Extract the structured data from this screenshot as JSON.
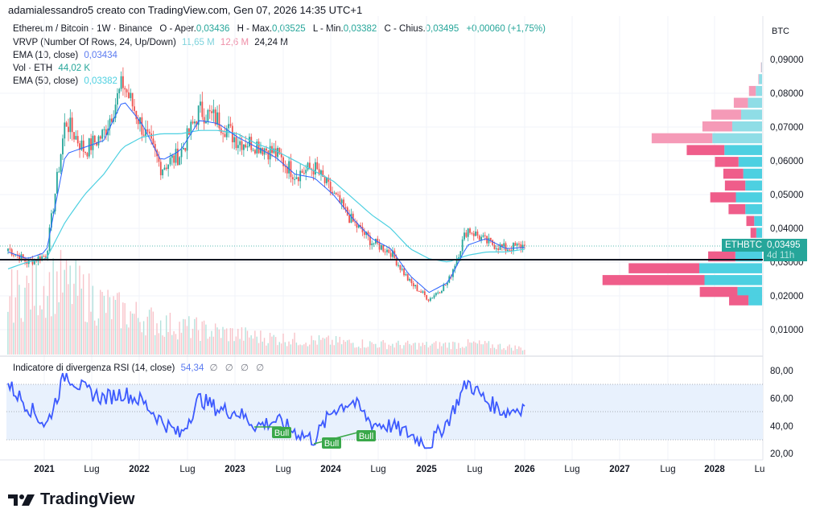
{
  "header": {
    "credit": "adamialessandro5 creato con TradingView.com, Gen 07, 2026 14:35 UTC+1"
  },
  "legend": {
    "symbol": "Ethereum / Bitcoin · 1W · Binance",
    "open_label": "O - Aper.",
    "open": "0,03436",
    "high_label": "H - Max.",
    "high": "0,03525",
    "low_label": "L - Min.",
    "low": "0,03382",
    "close_label": "C - Chius.",
    "close": "0,03495",
    "change": "+0,00060 (+1,75%)",
    "vrvp_label": "VRVP (Number Of Rows, 24, Up/Down)",
    "vrvp_up": "11,65 M",
    "vrvp_down": "12,6 M",
    "vrvp_total": "24,24 M",
    "ema10_label": "EMA (10, close)",
    "ema10": "0,03434",
    "vol_label": "Vol · ETH",
    "vol": "44,02 K",
    "ema50_label": "EMA (50, close)",
    "ema50": "0,03382"
  },
  "price_axis": {
    "unit": "BTC",
    "ticks": [
      "0,09000",
      "0,08000",
      "0,07000",
      "0,06000",
      "0,05000",
      "0,04000",
      "0,03000",
      "0,02000",
      "0,01000"
    ]
  },
  "price_tag": {
    "symbol": "ETHBTC",
    "price": "0,03495",
    "countdown": "4d 11h"
  },
  "rsi": {
    "label": "Indicatore di divergenza RSI (14, close)",
    "value": "54,34",
    "extra": "∅ ∅ ∅ ∅",
    "ticks": [
      "80,00",
      "60,00",
      "40,00",
      "20,00"
    ],
    "bull_labels": [
      "Bull",
      "Bull",
      "Bull"
    ]
  },
  "time_axis": {
    "labels": [
      {
        "text": "2021",
        "bold": true
      },
      {
        "text": "Lug",
        "bold": false
      },
      {
        "text": "2022",
        "bold": true
      },
      {
        "text": "Lug",
        "bold": false
      },
      {
        "text": "2023",
        "bold": true
      },
      {
        "text": "Lug",
        "bold": false
      },
      {
        "text": "2024",
        "bold": true
      },
      {
        "text": "Lug",
        "bold": false
      },
      {
        "text": "2025",
        "bold": true
      },
      {
        "text": "Lug",
        "bold": false
      },
      {
        "text": "2026",
        "bold": true
      },
      {
        "text": "Lug",
        "bold": false
      },
      {
        "text": "2027",
        "bold": true
      },
      {
        "text": "Lug",
        "bold": false
      },
      {
        "text": "2028",
        "bold": true
      },
      {
        "text": "Lu",
        "bold": false
      }
    ]
  },
  "branding": {
    "name": "TradingView"
  },
  "colors": {
    "up": "#26a69a",
    "down": "#ef5350",
    "ema10": "#2962ff",
    "ema50": "#4dd0e1",
    "vrvp_up": "#4dd0e1",
    "vrvp_down": "#ef5d8a",
    "rsi": "#3d5afe",
    "bull": "#3aa84a"
  },
  "chart_data": [
    {
      "type": "line",
      "title": "Ethereum / Bitcoin · 1W · Binance (approx. weekly close)",
      "xlabel": "",
      "ylabel": "BTC",
      "ylim": [
        0.0,
        0.095
      ],
      "x": [
        "2020-10",
        "2021-01",
        "2021-03",
        "2021-05",
        "2021-07",
        "2021-09",
        "2021-12",
        "2022-02",
        "2022-05",
        "2022-07",
        "2022-09",
        "2022-12",
        "2023-03",
        "2023-06",
        "2023-09",
        "2023-12",
        "2024-03",
        "2024-05",
        "2024-08",
        "2024-11",
        "2025-01",
        "2025-03",
        "2025-04",
        "2025-06",
        "2025-08",
        "2025-10",
        "2025-12",
        "2026-01"
      ],
      "series": [
        {
          "name": "Close",
          "values": [
            0.034,
            0.03,
            0.032,
            0.072,
            0.063,
            0.068,
            0.083,
            0.07,
            0.058,
            0.062,
            0.075,
            0.072,
            0.066,
            0.065,
            0.062,
            0.056,
            0.058,
            0.05,
            0.042,
            0.036,
            0.033,
            0.024,
            0.019,
            0.024,
            0.04,
            0.036,
            0.034,
            0.03495
          ]
        },
        {
          "name": "EMA (10, close)",
          "values": [
            0.033,
            0.031,
            0.033,
            0.062,
            0.064,
            0.066,
            0.078,
            0.071,
            0.06,
            0.063,
            0.072,
            0.071,
            0.067,
            0.064,
            0.061,
            0.056,
            0.055,
            0.05,
            0.043,
            0.037,
            0.034,
            0.026,
            0.021,
            0.024,
            0.035,
            0.037,
            0.034,
            0.03434
          ]
        },
        {
          "name": "EMA (50, close)",
          "values": [
            0.028,
            0.03,
            0.031,
            0.042,
            0.05,
            0.056,
            0.064,
            0.067,
            0.068,
            0.068,
            0.069,
            0.069,
            0.068,
            0.065,
            0.063,
            0.06,
            0.057,
            0.054,
            0.049,
            0.044,
            0.04,
            0.034,
            0.031,
            0.03,
            0.032,
            0.033,
            0.033,
            0.03382
          ]
        }
      ],
      "horizontal_line": 0.0306,
      "annotations": [
        "ETHBTC 0,03495 4d 11h"
      ]
    },
    {
      "type": "bar",
      "title": "VRVP (Number Of Rows, 24, Up/Down)",
      "orientation": "horizontal",
      "categories": [
        "0.0875",
        "0.0840",
        "0.0805",
        "0.0770",
        "0.0735",
        "0.0700",
        "0.0665",
        "0.0630",
        "0.0595",
        "0.0560",
        "0.0525",
        "0.0490",
        "0.0455",
        "0.0420",
        "0.0385",
        "0.0350",
        "0.0315",
        "0.0280",
        "0.0245",
        "0.0210",
        "0.0185"
      ],
      "series": [
        {
          "name": "Up",
          "values": [
            1,
            6,
            12,
            27,
            40,
            57,
            95,
            72,
            45,
            36,
            32,
            50,
            32,
            15,
            11,
            25,
            51,
            120,
            110,
            47,
            26
          ]
        },
        {
          "name": "Down",
          "values": [
            1,
            1,
            13,
            27,
            57,
            57,
            116,
            72,
            45,
            38,
            39,
            49,
            32,
            15,
            11,
            29,
            52,
            135,
            195,
            72,
            37
          ]
        }
      ],
      "totals": {
        "up": "11,65 M",
        "down": "12,6 M",
        "total": "24,24 M"
      }
    },
    {
      "type": "bar",
      "title": "Vol · ETH",
      "x": [
        "2021",
        "Lug 2021",
        "2022",
        "Lug 2022",
        "2023",
        "Lug 2023",
        "2024",
        "Lug 2024",
        "2025",
        "Lug 2025",
        "2026"
      ],
      "values": [
        75,
        95,
        60,
        40,
        30,
        22,
        18,
        14,
        12,
        14,
        8
      ],
      "note": "relative bar heights (px) — latest Vol 44,02 K"
    },
    {
      "type": "line",
      "title": "Indicatore di divergenza RSI (14, close)",
      "ylim": [
        20,
        85
      ],
      "x": [
        "2020-10",
        "2021-01",
        "2021-03",
        "2021-05",
        "2021-07",
        "2021-09",
        "2021-12",
        "2022-02",
        "2022-05",
        "2022-07",
        "2022-09",
        "2022-12",
        "2023-03",
        "2023-06",
        "2023-09",
        "2023-12",
        "2024-03",
        "2024-05",
        "2024-08",
        "2024-11",
        "2025-01",
        "2025-03",
        "2025-04",
        "2025-06",
        "2025-08",
        "2025-10",
        "2025-12",
        "2026-01"
      ],
      "series": [
        {
          "name": "RSI",
          "values": [
            70,
            55,
            40,
            78,
            66,
            60,
            64,
            58,
            44,
            33,
            60,
            52,
            50,
            40,
            44,
            36,
            30,
            52,
            58,
            42,
            40,
            34,
            26,
            44,
            72,
            58,
            50,
            54.34
          ]
        }
      ],
      "bands": {
        "upper": 70,
        "middle": 50,
        "lower": 30
      },
      "annotations": [
        "Bull",
        "Bull",
        "Bull"
      ]
    }
  ]
}
